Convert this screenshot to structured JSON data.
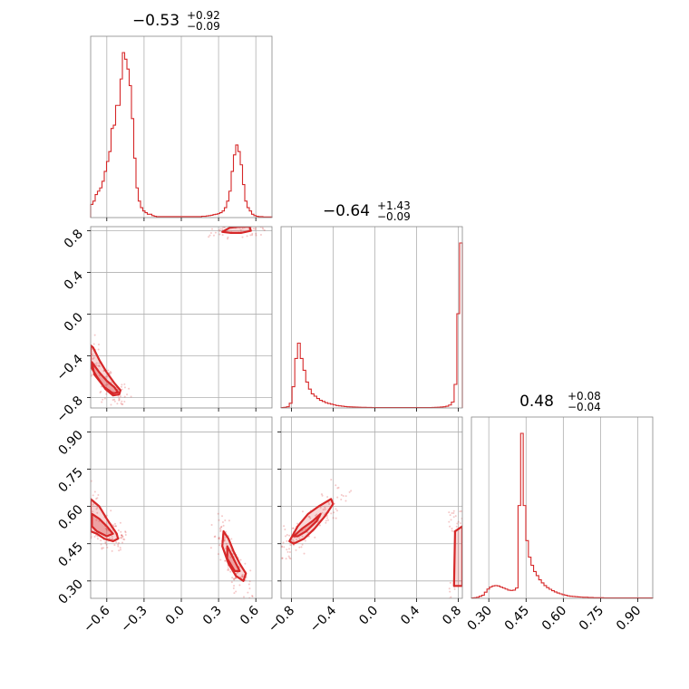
{
  "chart_data": {
    "type": "corner-plot",
    "color": "#d62728",
    "parameters": [
      {
        "median": "−0.53",
        "plus": "+0.92",
        "minus": "−0.09",
        "range": [
          -0.73,
          0.73
        ],
        "ticks": [
          -0.6,
          -0.3,
          0.0,
          0.3,
          0.6
        ],
        "tick_labels": [
          "−0.6",
          "−0.3",
          "0.0",
          "0.3",
          "0.6"
        ]
      },
      {
        "median": "−0.64",
        "plus": "+1.43",
        "minus": "−0.09",
        "range": [
          -0.9,
          0.84
        ],
        "ticks": [
          -0.8,
          -0.4,
          0.0,
          0.4,
          0.8
        ],
        "tick_labels": [
          "−0.8",
          "−0.4",
          "0.0",
          "0.4",
          "0.8"
        ]
      },
      {
        "median": "0.48",
        "plus": "+0.08",
        "minus": "−0.04",
        "range": [
          0.23,
          0.96
        ],
        "ticks": [
          0.3,
          0.45,
          0.6,
          0.75,
          0.9
        ],
        "tick_labels": [
          "0.30",
          "0.45",
          "0.60",
          "0.75",
          "0.90"
        ]
      }
    ],
    "histograms": [
      {
        "counts": [
          4,
          5,
          7,
          8,
          9,
          11,
          14,
          17,
          20,
          27,
          28,
          34,
          34,
          42,
          50,
          48,
          45,
          40,
          30,
          18,
          9,
          5,
          3,
          2,
          1.5,
          1,
          1,
          0.6,
          0.4,
          0.3,
          0.3,
          0.3,
          0.3,
          0.3,
          0.3,
          0.3,
          0.3,
          0.3,
          0.3,
          0.3,
          0.3,
          0.3,
          0.3,
          0.3,
          0.3,
          0.3,
          0.3,
          0.3,
          0.3,
          0.4,
          0.4,
          0.5,
          0.6,
          0.7,
          0.9,
          1,
          1.2,
          1.5,
          2,
          3,
          5,
          8,
          14,
          19,
          22,
          20,
          16,
          10,
          5,
          3,
          2,
          1,
          0.6,
          0.4,
          0.3,
          0.3,
          0.2,
          0.2,
          0.2,
          0.2
        ]
      },
      {
        "counts": [
          0.3,
          0.5,
          1,
          4,
          18,
          42,
          55,
          42,
          32,
          22,
          16,
          12,
          10,
          8,
          6.5,
          5.5,
          4.5,
          3.8,
          3.2,
          2.6,
          2.1,
          1.8,
          1.5,
          1.2,
          1,
          0.9,
          0.8,
          0.7,
          0.6,
          0.5,
          0.5,
          0.4,
          0.4,
          0.3,
          0.3,
          0.3,
          0.3,
          0.3,
          0.3,
          0.3,
          0.3,
          0.3,
          0.3,
          0.3,
          0.3,
          0.3,
          0.3,
          0.3,
          0.3,
          0.3,
          0.3,
          0.3,
          0.3,
          0.3,
          0.3,
          0.4,
          0.5,
          0.6,
          0.8,
          1,
          1.5,
          2.5,
          5,
          20,
          80,
          140
        ]
      },
      {
        "counts": [
          0.2,
          0.3,
          0.5,
          1,
          1.5,
          3,
          4.5,
          5.5,
          6,
          6.2,
          6,
          5.5,
          5,
          4.5,
          4,
          3.8,
          4,
          5,
          45,
          80,
          45,
          28,
          20,
          16,
          13,
          11,
          9,
          7.5,
          6.2,
          5.2,
          4.4,
          3.7,
          3.1,
          2.6,
          2.2,
          1.8,
          1.5,
          1.2,
          1,
          0.9,
          0.8,
          0.7,
          0.6,
          0.5,
          0.5,
          0.4,
          0.4,
          0.3,
          0.3,
          0.3,
          0.3,
          0.2,
          0.2,
          0.2,
          0.2,
          0.2,
          0.2,
          0.2,
          0.2,
          0.2,
          0.2,
          0.2,
          0.2,
          0.2,
          0.2,
          0.2,
          0.2,
          0.2,
          0.2,
          0.2
        ]
      }
    ],
    "pair_panels": [
      {
        "x": 0,
        "y": 1,
        "contour_regions": [
          {
            "points": [
              [
                -0.73,
                -0.3
              ],
              [
                -0.71,
                -0.32
              ],
              [
                -0.66,
                -0.44
              ],
              [
                -0.6,
                -0.56
              ],
              [
                -0.54,
                -0.66
              ],
              [
                -0.49,
                -0.73
              ],
              [
                -0.5,
                -0.77
              ],
              [
                -0.55,
                -0.78
              ],
              [
                -0.61,
                -0.72
              ],
              [
                -0.68,
                -0.6
              ],
              [
                -0.73,
                -0.5
              ]
            ],
            "level": "outer"
          },
          {
            "points": [
              [
                -0.72,
                -0.46
              ],
              [
                -0.66,
                -0.56
              ],
              [
                -0.6,
                -0.64
              ],
              [
                -0.54,
                -0.7
              ],
              [
                -0.51,
                -0.75
              ],
              [
                -0.55,
                -0.76
              ],
              [
                -0.62,
                -0.7
              ],
              [
                -0.7,
                -0.58
              ]
            ],
            "level": "inner"
          },
          {
            "points": [
              [
                0.33,
                0.79
              ],
              [
                0.39,
                0.83
              ],
              [
                0.47,
                0.84
              ],
              [
                0.55,
                0.84
              ],
              [
                0.56,
                0.8
              ],
              [
                0.48,
                0.78
              ],
              [
                0.4,
                0.78
              ]
            ],
            "level": "outer"
          }
        ]
      },
      {
        "x": 0,
        "y": 2,
        "contour_regions": [
          {
            "points": [
              [
                -0.73,
                0.63
              ],
              [
                -0.66,
                0.6
              ],
              [
                -0.6,
                0.55
              ],
              [
                -0.56,
                0.52
              ],
              [
                -0.52,
                0.49
              ],
              [
                -0.51,
                0.47
              ],
              [
                -0.55,
                0.46
              ],
              [
                -0.62,
                0.47
              ],
              [
                -0.68,
                0.49
              ],
              [
                -0.73,
                0.5
              ]
            ],
            "level": "outer"
          },
          {
            "points": [
              [
                -0.72,
                0.57
              ],
              [
                -0.66,
                0.55
              ],
              [
                -0.6,
                0.52
              ],
              [
                -0.55,
                0.49
              ],
              [
                -0.6,
                0.48
              ],
              [
                -0.68,
                0.5
              ],
              [
                -0.72,
                0.52
              ]
            ],
            "level": "inner"
          },
          {
            "points": [
              [
                0.34,
                0.5
              ],
              [
                0.38,
                0.47
              ],
              [
                0.42,
                0.42
              ],
              [
                0.47,
                0.37
              ],
              [
                0.52,
                0.33
              ],
              [
                0.5,
                0.3
              ],
              [
                0.44,
                0.32
              ],
              [
                0.38,
                0.37
              ],
              [
                0.33,
                0.44
              ]
            ],
            "level": "outer"
          },
          {
            "points": [
              [
                0.37,
                0.44
              ],
              [
                0.42,
                0.39
              ],
              [
                0.47,
                0.34
              ],
              [
                0.43,
                0.34
              ],
              [
                0.37,
                0.39
              ]
            ],
            "level": "inner"
          }
        ]
      },
      {
        "x": 1,
        "y": 2,
        "contour_regions": [
          {
            "points": [
              [
                -0.82,
                0.46
              ],
              [
                -0.74,
                0.52
              ],
              [
                -0.64,
                0.57
              ],
              [
                -0.54,
                0.6
              ],
              [
                -0.42,
                0.63
              ],
              [
                -0.4,
                0.61
              ],
              [
                -0.48,
                0.56
              ],
              [
                -0.58,
                0.51
              ],
              [
                -0.68,
                0.47
              ],
              [
                -0.78,
                0.45
              ]
            ],
            "level": "outer"
          },
          {
            "points": [
              [
                -0.78,
                0.48
              ],
              [
                -0.7,
                0.51
              ],
              [
                -0.6,
                0.54
              ],
              [
                -0.52,
                0.57
              ],
              [
                -0.56,
                0.54
              ],
              [
                -0.66,
                0.5
              ],
              [
                -0.74,
                0.48
              ]
            ],
            "level": "inner"
          },
          {
            "points": [
              [
                0.76,
                0.28
              ],
              [
                0.84,
                0.28
              ],
              [
                0.84,
                0.52
              ],
              [
                0.77,
                0.5
              ]
            ],
            "level": "outer"
          }
        ]
      }
    ]
  }
}
